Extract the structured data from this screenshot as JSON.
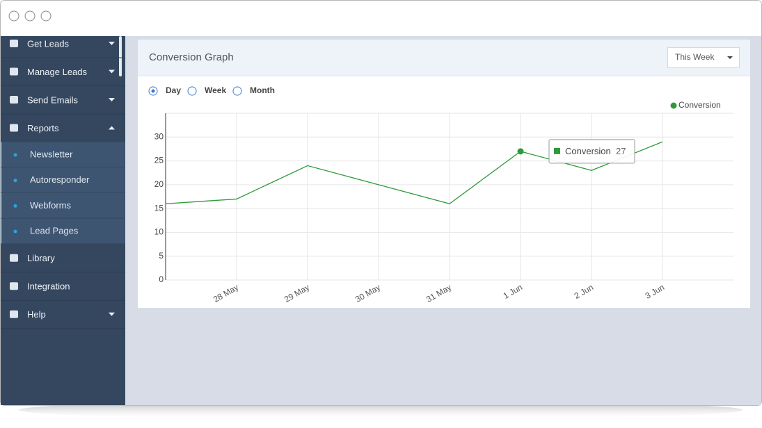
{
  "sidebar": {
    "items": [
      {
        "label": "Get Leads",
        "caret": "down"
      },
      {
        "label": "Manage Leads",
        "caret": "down"
      },
      {
        "label": "Send Emails",
        "caret": "down"
      },
      {
        "label": "Reports",
        "caret": "up",
        "submenu": [
          "Newsletter",
          "Autoresponder",
          "Webforms",
          "Lead Pages"
        ]
      },
      {
        "label": "Library"
      },
      {
        "label": "Integration"
      },
      {
        "label": "Help",
        "caret": "down"
      }
    ]
  },
  "panel": {
    "title": "Conversion Graph",
    "dropdown": "This Week",
    "ranges": [
      "Day",
      "Week",
      "Month"
    ],
    "selected_range": 0
  },
  "chart_data": {
    "type": "line",
    "categories": [
      null,
      "28 May",
      "29 May",
      "30 May",
      "31 May",
      "1 Jun",
      "2 Jun",
      "3 Jun"
    ],
    "series": [
      {
        "name": "Conversion",
        "color": "#2e9a3a",
        "values": [
          16,
          17,
          24,
          20,
          16,
          27,
          23,
          29
        ]
      }
    ],
    "ylim": [
      0,
      35
    ],
    "yticks": [
      0,
      5,
      10,
      15,
      20,
      25,
      30
    ],
    "grid": true,
    "legend": "top-right",
    "tooltip_index": 5
  }
}
